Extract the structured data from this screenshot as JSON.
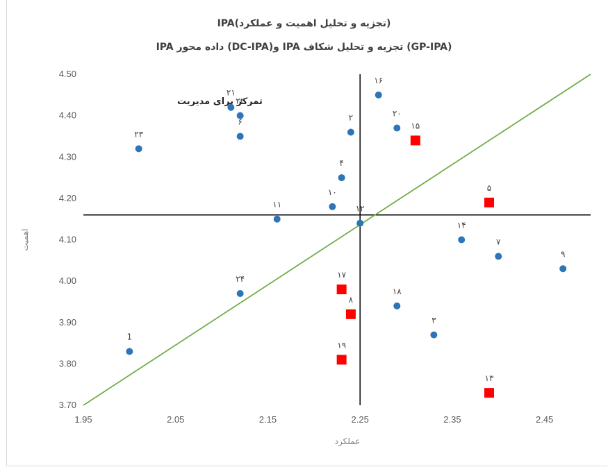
{
  "chart_data": {
    "type": "scatter",
    "title": "(تجزیه و تحلیل اهمیت و عملکرد)IPA",
    "subtitle": "IPA داده محور (DC-IPA)و IPA تجزیه و تحلیل شکاف (GP-IPA)",
    "xlabel": "عملکرد",
    "ylabel": "اهمیت",
    "xlim": [
      1.95,
      2.5
    ],
    "ylim": [
      3.7,
      4.5
    ],
    "x_ticks": [
      "1.95",
      "2.05",
      "2.15",
      "2.25",
      "2.35",
      "2.45"
    ],
    "y_ticks": [
      "3.70",
      "3.80",
      "3.90",
      "4.00",
      "4.10",
      "4.20",
      "4.30",
      "4.40",
      "4.50"
    ],
    "grid": false,
    "crosshair": {
      "x": 2.25,
      "y": 4.16
    },
    "diagonal": {
      "from": [
        1.95,
        3.7
      ],
      "to": [
        2.5,
        4.5
      ],
      "color": "#70ad47"
    },
    "annotation": "تمرکز برای مدیریت",
    "series": [
      {
        "marker": "circle",
        "color": "#2e75b6",
        "points": [
          {
            "label": "1",
            "x": 2.0,
            "y": 3.83
          },
          {
            "label": "۲۳",
            "x": 2.01,
            "y": 4.32
          },
          {
            "label": "۲۱",
            "x": 2.11,
            "y": 4.42
          },
          {
            "label": "۲۲",
            "x": 2.12,
            "y": 4.4
          },
          {
            "label": "۶",
            "x": 2.12,
            "y": 4.35
          },
          {
            "label": "۲۴",
            "x": 2.12,
            "y": 3.97
          },
          {
            "label": "۱۱",
            "x": 2.16,
            "y": 4.15
          },
          {
            "label": "۱۰",
            "x": 2.22,
            "y": 4.18
          },
          {
            "label": "۴",
            "x": 2.23,
            "y": 4.25
          },
          {
            "label": "۲",
            "x": 2.24,
            "y": 4.36
          },
          {
            "label": "۱۲",
            "x": 2.25,
            "y": 4.14
          },
          {
            "label": "۱۶",
            "x": 2.27,
            "y": 4.45
          },
          {
            "label": "۲۰",
            "x": 2.29,
            "y": 4.37
          },
          {
            "label": "۱۸",
            "x": 2.29,
            "y": 3.94
          },
          {
            "label": "۳",
            "x": 2.33,
            "y": 3.87
          },
          {
            "label": "۱۴",
            "x": 2.36,
            "y": 4.1
          },
          {
            "label": "۷",
            "x": 2.4,
            "y": 4.06
          },
          {
            "label": "۹",
            "x": 2.47,
            "y": 4.03
          }
        ]
      },
      {
        "marker": "square",
        "color": "#ff0000",
        "points": [
          {
            "label": "۱۵",
            "x": 2.31,
            "y": 4.34
          },
          {
            "label": "۵",
            "x": 2.39,
            "y": 4.19
          },
          {
            "label": "۱۷",
            "x": 2.23,
            "y": 3.98
          },
          {
            "label": "۸",
            "x": 2.24,
            "y": 3.92
          },
          {
            "label": "۱۹",
            "x": 2.23,
            "y": 3.81
          },
          {
            "label": "۱۳",
            "x": 2.39,
            "y": 3.73
          }
        ]
      }
    ]
  }
}
